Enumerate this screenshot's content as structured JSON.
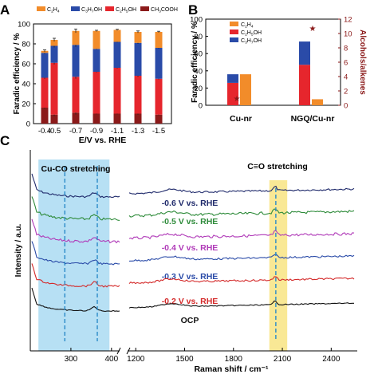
{
  "panel_a_label": "A",
  "panel_b_label": "B",
  "panel_c_label": "C",
  "chart_data": [
    {
      "id": "A",
      "type": "bar",
      "xlabel": "E/V vs. RHE",
      "ylabel": "Faradic efficiency / %",
      "ylim": [
        0,
        100
      ],
      "yticks": [
        0,
        20,
        40,
        60,
        80,
        100
      ],
      "categories": [
        "-0.4",
        "-0.5",
        "-0.7",
        "-0.9",
        "-1.1",
        "-1.3",
        "-1.5"
      ],
      "stacked": true,
      "legend": "top",
      "series": [
        {
          "name": "CH3COOH",
          "color": "#8b1a1a",
          "values": [
            16,
            9,
            11,
            10,
            10,
            10,
            9
          ]
        },
        {
          "name": "C2H5OH",
          "color": "#e6262d",
          "values": [
            30,
            52,
            36,
            42,
            46,
            38,
            36
          ]
        },
        {
          "name": "C3H7OH",
          "color": "#2a4ba8",
          "values": [
            25,
            17,
            32,
            23,
            26,
            33,
            31
          ]
        },
        {
          "name": "C2H4",
          "color": "#f28c2a",
          "values": [
            2,
            6,
            14,
            18,
            12,
            11,
            16
          ]
        }
      ],
      "errors": [
        1.5,
        2.5,
        3,
        1,
        1,
        1.5,
        1
      ],
      "legend_labels": [
        "C2H4",
        "C3H7OH",
        "C2H5OH",
        "CH3COOH"
      ]
    },
    {
      "id": "B",
      "type": "bar",
      "xlabel": "",
      "ylabel": "Faradic efficiency / %",
      "ylabel_right": "Alcohols/alkenes",
      "ylim": [
        0,
        100
      ],
      "yticks": [
        0,
        20,
        40,
        60,
        80,
        100
      ],
      "ylim_right": [
        0,
        12
      ],
      "yticks_right": [
        0,
        2,
        4,
        6,
        8,
        10,
        12
      ],
      "categories": [
        "Cu-nr",
        "NGQ/Cu-nr"
      ],
      "series": [
        {
          "name": "C2H4",
          "color": "#f28c2a",
          "values": [
            36,
            7
          ]
        },
        {
          "name": "C2H5OH",
          "color": "#e6262d",
          "values": [
            26,
            47
          ]
        },
        {
          "name": "C3H7OH",
          "color": "#2a4ba8",
          "values": [
            10,
            27
          ]
        }
      ],
      "ratio": [
        1.0,
        10.8
      ],
      "ratio_color": "#8b1a1a",
      "legend_labels": [
        "C2H4",
        "C2H5OH",
        "C3H7OH"
      ]
    },
    {
      "id": "C",
      "type": "line",
      "xlabel": "Raman shift / cm⁻¹",
      "ylabel": "Intensity / a.u.",
      "xticks": [
        300,
        400,
        1200,
        1500,
        1800,
        2100,
        2400
      ],
      "x_break": [
        420,
        1150
      ],
      "series": [
        {
          "name": "-0.6 V vs. RHE",
          "color": "#1f2a6b"
        },
        {
          "name": "-0.5 V vs. RHE",
          "color": "#2e8b3a"
        },
        {
          "name": "-0.4 V vs. RHE",
          "color": "#b03ab8"
        },
        {
          "name": "-0.3 V vs. RHE",
          "color": "#2a4ba8"
        },
        {
          "name": "-0.2 V vs. RHE",
          "color": "#d42a2a"
        },
        {
          "name": "OCP",
          "color": "#111111"
        }
      ],
      "annotations": [
        "Cu-CO stretching",
        "C≡O stretching"
      ],
      "highlight_regions": [
        {
          "from": 220,
          "to": 395,
          "color": "#9fd6f0"
        },
        {
          "from": 2020,
          "to": 2130,
          "color": "#f7e27a"
        }
      ],
      "marker_lines": [
        285,
        365,
        2060
      ]
    }
  ]
}
